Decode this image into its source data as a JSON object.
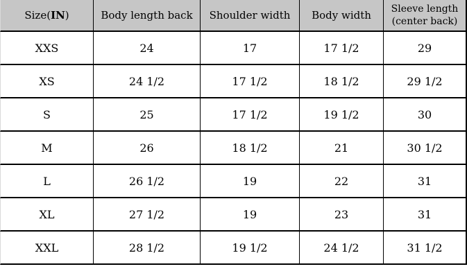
{
  "chart_data": {
    "type": "table",
    "unit": "IN",
    "columns": [
      "Size(IN)",
      "Body length back",
      "Shoulder width",
      "Body width",
      "Sleeve length (center back)"
    ],
    "rows": [
      [
        "XXS",
        "24",
        "17",
        "17 1/2",
        "29"
      ],
      [
        "XS",
        "24 1/2",
        "17 1/2",
        "18 1/2",
        "29 1/2"
      ],
      [
        "S",
        "25",
        "17 1/2",
        "19 1/2",
        "30"
      ],
      [
        "M",
        "26",
        "18 1/2",
        "21",
        "30 1/2"
      ],
      [
        "L",
        "26 1/2",
        "19",
        "22",
        "31"
      ],
      [
        "XL",
        "27 1/2",
        "19",
        "23",
        "31"
      ],
      [
        "XXL",
        "28 1/2",
        "19 1/2",
        "24 1/2",
        "31 1/2"
      ]
    ]
  },
  "header_display": {
    "size_prefix": "Size(",
    "size_bold": "IN",
    "size_suffix": ")",
    "col_body_length_back": "Body length back",
    "col_shoulder_width": "Shoulder width",
    "col_body_width": "Body width",
    "sleeve_line1": "Sleeve length",
    "sleeve_line2": "(center back)"
  },
  "colors": {
    "header_bg": "#c6c6c6",
    "border": "#000000",
    "row_bg": "#ffffff",
    "text": "#000000"
  }
}
